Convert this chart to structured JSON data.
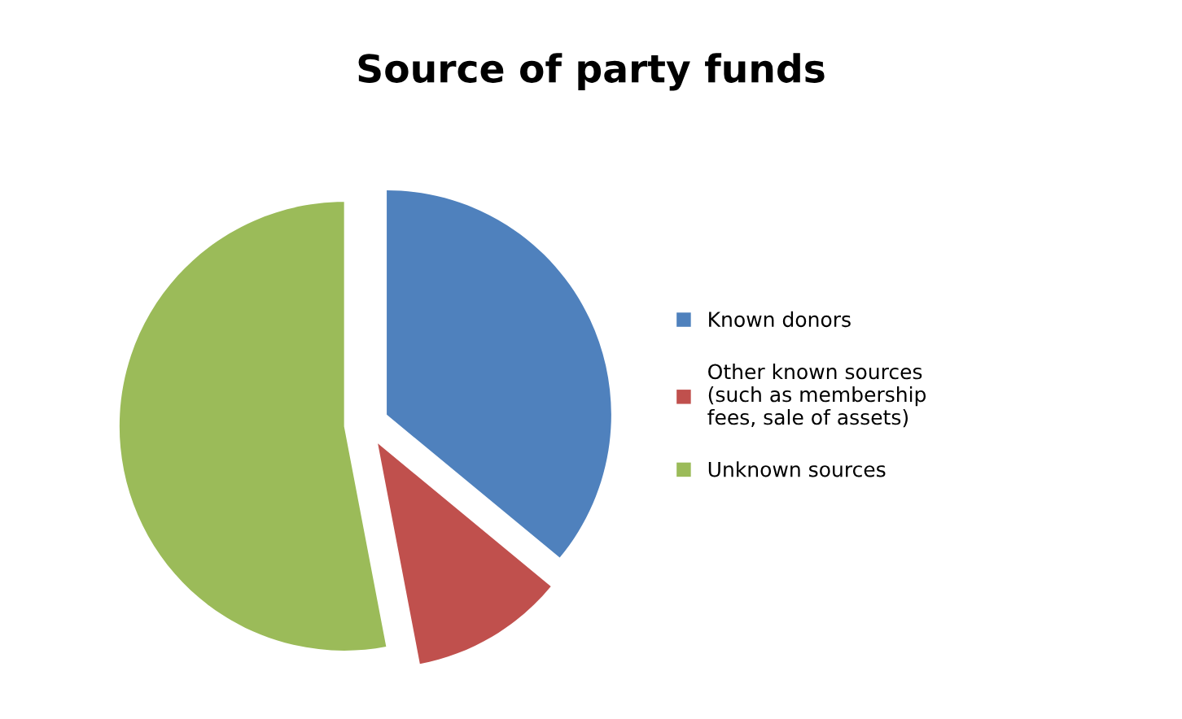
{
  "chart_data": {
    "type": "pie",
    "title": "Source of party funds",
    "categories": [
      "Known donors",
      "Other known sources\n(such as membership\nfees, sale of assets)",
      "Unknown sources"
    ],
    "values": [
      36,
      11,
      53
    ],
    "colors": [
      "#4f81bd",
      "#c0504d",
      "#9bbb59"
    ],
    "legend": "right"
  }
}
